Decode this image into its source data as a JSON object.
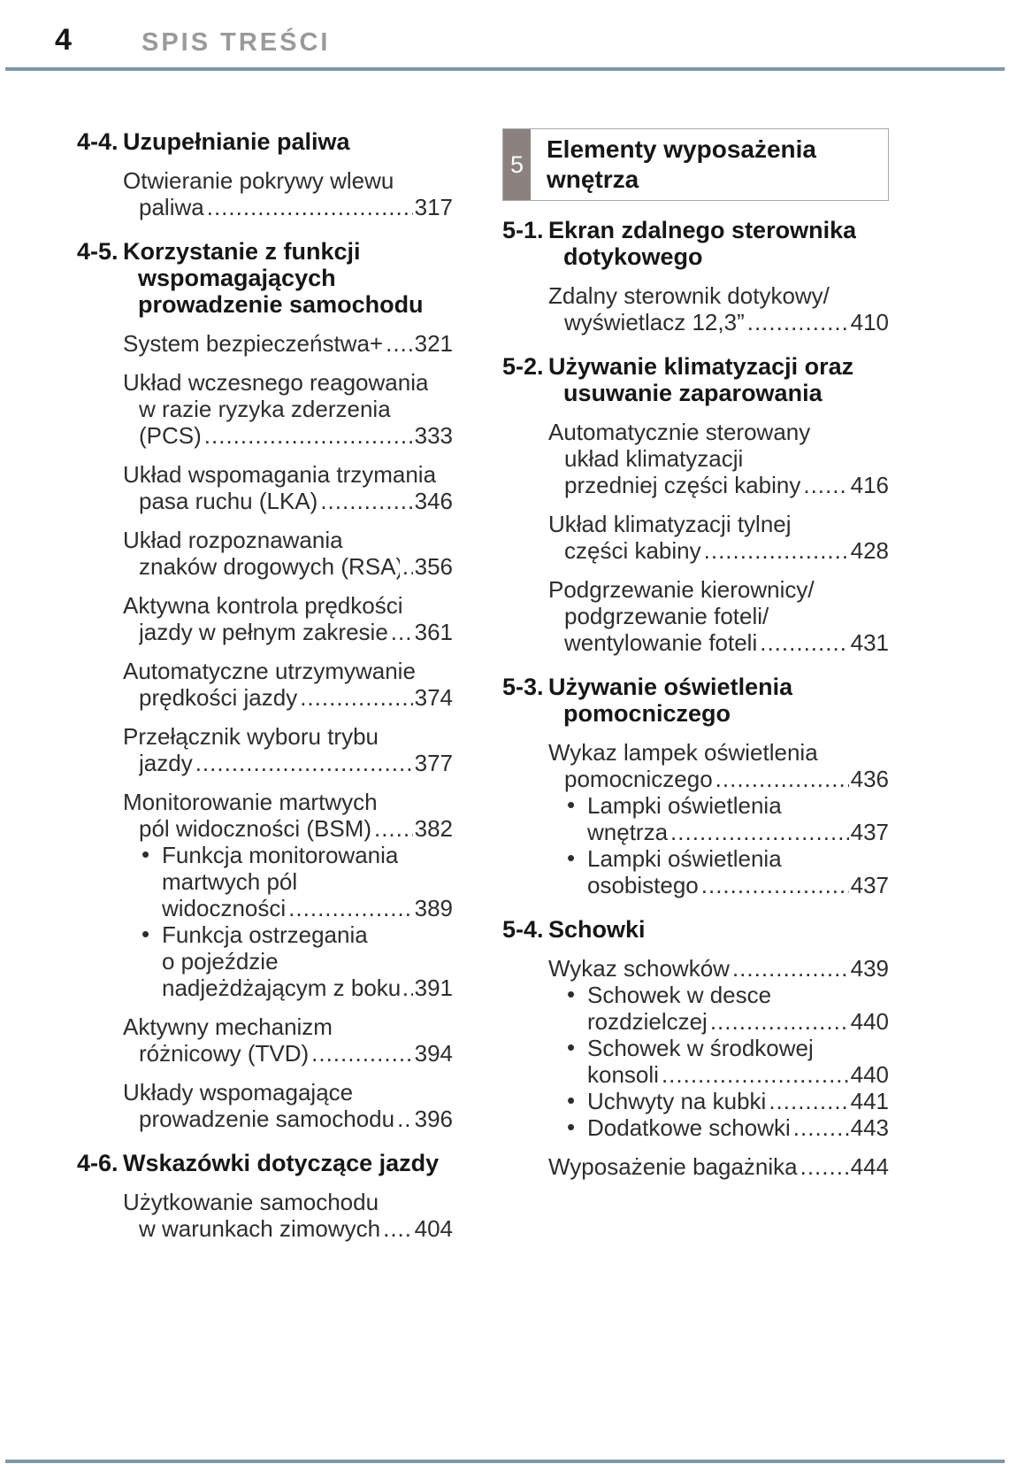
{
  "header": {
    "page_number": "4",
    "title": "SPIS TREŚCI"
  },
  "colors": {
    "rule": "#7e97a9",
    "header_title_gray": "#9a9a9a",
    "banner_tab_gray": "#8b8280",
    "banner_border": "#a8a8a8",
    "text": "#2d2d2d"
  },
  "chapter_banner": {
    "number": "5",
    "title": "Elementy wyposażenia wnętrza"
  },
  "left_column": [
    {
      "t": "sec",
      "n": "4-4.",
      "lines": [
        "Uzupełnianie paliwa"
      ]
    },
    {
      "t": "e",
      "lines": [
        "Otwieranie pokrywy wlewu",
        "paliwa"
      ],
      "p": "317"
    },
    {
      "t": "sec",
      "n": "4-5.",
      "lines": [
        "Korzystanie z funkcji",
        "wspomagających",
        "prowadzenie samochodu"
      ]
    },
    {
      "t": "e",
      "lines": [
        "System bezpieczeństwa+"
      ],
      "p": "321"
    },
    {
      "t": "e",
      "lines": [
        "Układ wczesnego reagowania",
        "w razie ryzyka zderzenia",
        "(PCS)"
      ],
      "p": "333"
    },
    {
      "t": "e",
      "lines": [
        "Układ wspomagania trzymania",
        "pasa ruchu (LKA)"
      ],
      "p": "346"
    },
    {
      "t": "e",
      "lines": [
        "Układ rozpoznawania",
        "znaków drogowych (RSA)"
      ],
      "p": "356"
    },
    {
      "t": "e",
      "lines": [
        "Aktywna kontrola prędkości",
        "jazdy w pełnym zakresie"
      ],
      "p": "361"
    },
    {
      "t": "e",
      "lines": [
        "Automatyczne utrzymywanie",
        "prędkości jazdy"
      ],
      "p": "374"
    },
    {
      "t": "e",
      "lines": [
        "Przełącznik wyboru trybu",
        "jazdy"
      ],
      "p": "377"
    },
    {
      "t": "e",
      "lines": [
        "Monitorowanie martwych",
        "pól widoczności (BSM)"
      ],
      "p": "382"
    },
    {
      "t": "b",
      "lines": [
        "Funkcja monitorowania",
        "martwych pól",
        "widoczności"
      ],
      "p": "389"
    },
    {
      "t": "b",
      "lines": [
        "Funkcja ostrzegania",
        "o pojeździe",
        "nadjeżdżającym z boku"
      ],
      "p": "391"
    },
    {
      "t": "e",
      "lines": [
        "Aktywny mechanizm",
        "różnicowy (TVD)"
      ],
      "p": "394"
    },
    {
      "t": "e",
      "lines": [
        "Układy wspomagające",
        "prowadzenie samochodu"
      ],
      "p": "396"
    },
    {
      "t": "sec",
      "n": "4-6.",
      "lines": [
        "Wskazówki dotyczące jazdy"
      ]
    },
    {
      "t": "e",
      "lines": [
        "Użytkowanie samochodu",
        "w warunkach zimowych"
      ],
      "p": "404"
    }
  ],
  "right_column": [
    {
      "t": "sec",
      "n": "5-1.",
      "lines": [
        "Ekran zdalnego sterownika",
        "dotykowego"
      ]
    },
    {
      "t": "e",
      "lines": [
        "Zdalny sterownik dotykowy/",
        "wyświetlacz 12,3”"
      ],
      "p": "410"
    },
    {
      "t": "sec",
      "n": "5-2.",
      "lines": [
        "Używanie klimatyzacji oraz",
        "usuwanie zaparowania"
      ]
    },
    {
      "t": "e",
      "lines": [
        "Automatycznie sterowany",
        "układ klimatyzacji",
        "przedniej części kabiny"
      ],
      "p": "416"
    },
    {
      "t": "e",
      "lines": [
        "Układ klimatyzacji tylnej",
        "części kabiny"
      ],
      "p": "428"
    },
    {
      "t": "e",
      "lines": [
        "Podgrzewanie kierownicy/",
        "podgrzewanie foteli/",
        "wentylowanie foteli"
      ],
      "p": "431"
    },
    {
      "t": "sec",
      "n": "5-3.",
      "lines": [
        "Używanie oświetlenia",
        "pomocniczego"
      ]
    },
    {
      "t": "e",
      "lines": [
        "Wykaz lampek oświetlenia",
        "pomocniczego"
      ],
      "p": "436"
    },
    {
      "t": "b",
      "lines": [
        "Lampki oświetlenia",
        "wnętrza"
      ],
      "p": "437"
    },
    {
      "t": "b",
      "lines": [
        "Lampki oświetlenia",
        "osobistego"
      ],
      "p": "437"
    },
    {
      "t": "sec",
      "n": "5-4.",
      "lines": [
        "Schowki"
      ]
    },
    {
      "t": "e",
      "lines": [
        "Wykaz schowków"
      ],
      "p": "439"
    },
    {
      "t": "b",
      "lines": [
        "Schowek w desce",
        "rozdzielczej"
      ],
      "p": "440"
    },
    {
      "t": "b",
      "lines": [
        "Schowek w środkowej",
        "konsoli"
      ],
      "p": "440"
    },
    {
      "t": "b",
      "lines": [
        "Uchwyty na kubki"
      ],
      "p": "441"
    },
    {
      "t": "b",
      "lines": [
        "Dodatkowe schowki"
      ],
      "p": "443"
    },
    {
      "t": "e",
      "lines": [
        "Wyposażenie bagażnika"
      ],
      "p": "444"
    }
  ]
}
